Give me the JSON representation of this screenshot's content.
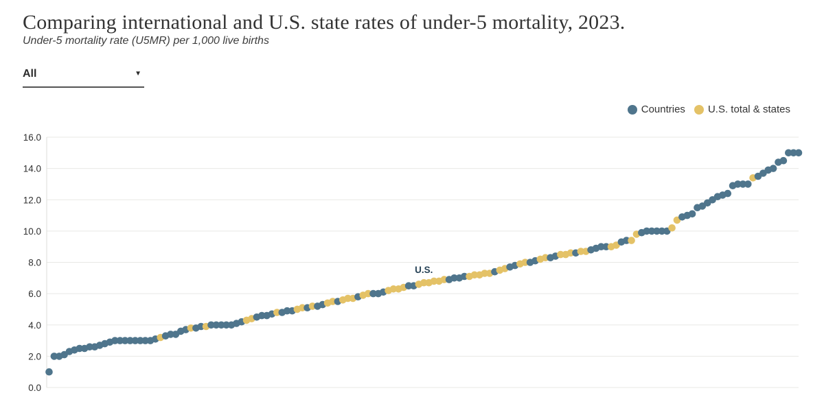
{
  "header": {
    "title": "Comparing international and U.S. state rates of under-5 mortality, 2023.",
    "subtitle": "Under-5 mortality rate (U5MR) per 1,000 live births"
  },
  "filter": {
    "selected_value": "All",
    "caret": "▼"
  },
  "legend": {
    "items": [
      {
        "label": "Countries",
        "color": "#4f758c"
      },
      {
        "label": "U.S. total & states",
        "color": "#e4c267"
      }
    ]
  },
  "chart_data": {
    "type": "scatter",
    "title": "Comparing international and U.S. state rates of under-5 mortality, 2023.",
    "xlabel": "",
    "ylabel": "Under-5 mortality rate (U5MR) per 1,000 live births",
    "x_encoding": "rank order, all entities sorted ascending by rate; no x tick labels",
    "ylim": [
      0,
      16
    ],
    "yticks": [
      0,
      2,
      4,
      6,
      8,
      10,
      12,
      14,
      16
    ],
    "ytick_labels": [
      "0.0",
      "2.0",
      "4.0",
      "6.0",
      "8.0",
      "10.0",
      "12.0",
      "14.0",
      "16.0"
    ],
    "grid": "horizontal",
    "legend_position": "top-right",
    "groups": {
      "C": "Countries",
      "U": "U.S. total & states"
    },
    "colors": {
      "C": "#4f758c",
      "U": "#e4c267",
      "gridline": "#e8e8e5",
      "axis": "#dededa",
      "tick_text": "#2f2f2f",
      "annotation_text": "#274357"
    },
    "us_annotation": {
      "text": "U.S.",
      "point_index": 74,
      "value": 6.7
    },
    "points": [
      [
        1.0,
        "C"
      ],
      [
        2.0,
        "C"
      ],
      [
        2.0,
        "C"
      ],
      [
        2.1,
        "C"
      ],
      [
        2.3,
        "C"
      ],
      [
        2.4,
        "C"
      ],
      [
        2.5,
        "C"
      ],
      [
        2.5,
        "C"
      ],
      [
        2.6,
        "C"
      ],
      [
        2.6,
        "C"
      ],
      [
        2.7,
        "C"
      ],
      [
        2.8,
        "C"
      ],
      [
        2.9,
        "C"
      ],
      [
        3.0,
        "C"
      ],
      [
        3.0,
        "C"
      ],
      [
        3.0,
        "C"
      ],
      [
        3.0,
        "C"
      ],
      [
        3.0,
        "C"
      ],
      [
        3.0,
        "C"
      ],
      [
        3.0,
        "C"
      ],
      [
        3.0,
        "C"
      ],
      [
        3.1,
        "C"
      ],
      [
        3.2,
        "U"
      ],
      [
        3.3,
        "C"
      ],
      [
        3.4,
        "C"
      ],
      [
        3.4,
        "C"
      ],
      [
        3.6,
        "C"
      ],
      [
        3.7,
        "C"
      ],
      [
        3.8,
        "U"
      ],
      [
        3.8,
        "C"
      ],
      [
        3.9,
        "C"
      ],
      [
        3.9,
        "U"
      ],
      [
        4.0,
        "C"
      ],
      [
        4.0,
        "C"
      ],
      [
        4.0,
        "C"
      ],
      [
        4.0,
        "C"
      ],
      [
        4.0,
        "C"
      ],
      [
        4.1,
        "C"
      ],
      [
        4.2,
        "C"
      ],
      [
        4.3,
        "U"
      ],
      [
        4.4,
        "U"
      ],
      [
        4.5,
        "C"
      ],
      [
        4.6,
        "C"
      ],
      [
        4.6,
        "C"
      ],
      [
        4.7,
        "C"
      ],
      [
        4.8,
        "U"
      ],
      [
        4.8,
        "C"
      ],
      [
        4.9,
        "C"
      ],
      [
        4.9,
        "C"
      ],
      [
        5.0,
        "U"
      ],
      [
        5.1,
        "U"
      ],
      [
        5.1,
        "C"
      ],
      [
        5.2,
        "U"
      ],
      [
        5.2,
        "C"
      ],
      [
        5.3,
        "C"
      ],
      [
        5.4,
        "U"
      ],
      [
        5.5,
        "U"
      ],
      [
        5.5,
        "C"
      ],
      [
        5.6,
        "U"
      ],
      [
        5.7,
        "U"
      ],
      [
        5.7,
        "U"
      ],
      [
        5.8,
        "C"
      ],
      [
        5.9,
        "U"
      ],
      [
        6.0,
        "U"
      ],
      [
        6.0,
        "C"
      ],
      [
        6.0,
        "C"
      ],
      [
        6.1,
        "C"
      ],
      [
        6.2,
        "U"
      ],
      [
        6.3,
        "U"
      ],
      [
        6.3,
        "U"
      ],
      [
        6.4,
        "U"
      ],
      [
        6.5,
        "C"
      ],
      [
        6.5,
        "C"
      ],
      [
        6.6,
        "U"
      ],
      [
        6.7,
        "U"
      ],
      [
        6.7,
        "U"
      ],
      [
        6.8,
        "U"
      ],
      [
        6.8,
        "U"
      ],
      [
        6.9,
        "U"
      ],
      [
        6.9,
        "C"
      ],
      [
        7.0,
        "C"
      ],
      [
        7.0,
        "C"
      ],
      [
        7.1,
        "C"
      ],
      [
        7.1,
        "U"
      ],
      [
        7.2,
        "U"
      ],
      [
        7.2,
        "U"
      ],
      [
        7.3,
        "U"
      ],
      [
        7.3,
        "U"
      ],
      [
        7.4,
        "C"
      ],
      [
        7.5,
        "U"
      ],
      [
        7.6,
        "U"
      ],
      [
        7.7,
        "C"
      ],
      [
        7.8,
        "C"
      ],
      [
        7.9,
        "U"
      ],
      [
        8.0,
        "U"
      ],
      [
        8.0,
        "C"
      ],
      [
        8.1,
        "C"
      ],
      [
        8.2,
        "U"
      ],
      [
        8.3,
        "U"
      ],
      [
        8.3,
        "C"
      ],
      [
        8.4,
        "C"
      ],
      [
        8.5,
        "U"
      ],
      [
        8.5,
        "U"
      ],
      [
        8.6,
        "U"
      ],
      [
        8.6,
        "C"
      ],
      [
        8.7,
        "U"
      ],
      [
        8.7,
        "U"
      ],
      [
        8.8,
        "C"
      ],
      [
        8.9,
        "C"
      ],
      [
        9.0,
        "C"
      ],
      [
        9.0,
        "C"
      ],
      [
        9.0,
        "U"
      ],
      [
        9.1,
        "U"
      ],
      [
        9.3,
        "C"
      ],
      [
        9.4,
        "C"
      ],
      [
        9.4,
        "U"
      ],
      [
        9.8,
        "U"
      ],
      [
        9.9,
        "C"
      ],
      [
        10.0,
        "C"
      ],
      [
        10.0,
        "C"
      ],
      [
        10.0,
        "C"
      ],
      [
        10.0,
        "C"
      ],
      [
        10.0,
        "C"
      ],
      [
        10.2,
        "U"
      ],
      [
        10.7,
        "U"
      ],
      [
        10.9,
        "C"
      ],
      [
        11.0,
        "C"
      ],
      [
        11.1,
        "C"
      ],
      [
        11.5,
        "C"
      ],
      [
        11.6,
        "C"
      ],
      [
        11.8,
        "C"
      ],
      [
        12.0,
        "C"
      ],
      [
        12.2,
        "C"
      ],
      [
        12.3,
        "C"
      ],
      [
        12.4,
        "C"
      ],
      [
        12.9,
        "C"
      ],
      [
        13.0,
        "C"
      ],
      [
        13.0,
        "C"
      ],
      [
        13.0,
        "C"
      ],
      [
        13.4,
        "U"
      ],
      [
        13.5,
        "C"
      ],
      [
        13.7,
        "C"
      ],
      [
        13.9,
        "C"
      ],
      [
        14.0,
        "C"
      ],
      [
        14.4,
        "C"
      ],
      [
        14.5,
        "C"
      ],
      [
        15.0,
        "C"
      ],
      [
        15.0,
        "C"
      ],
      [
        15.0,
        "C"
      ]
    ]
  }
}
